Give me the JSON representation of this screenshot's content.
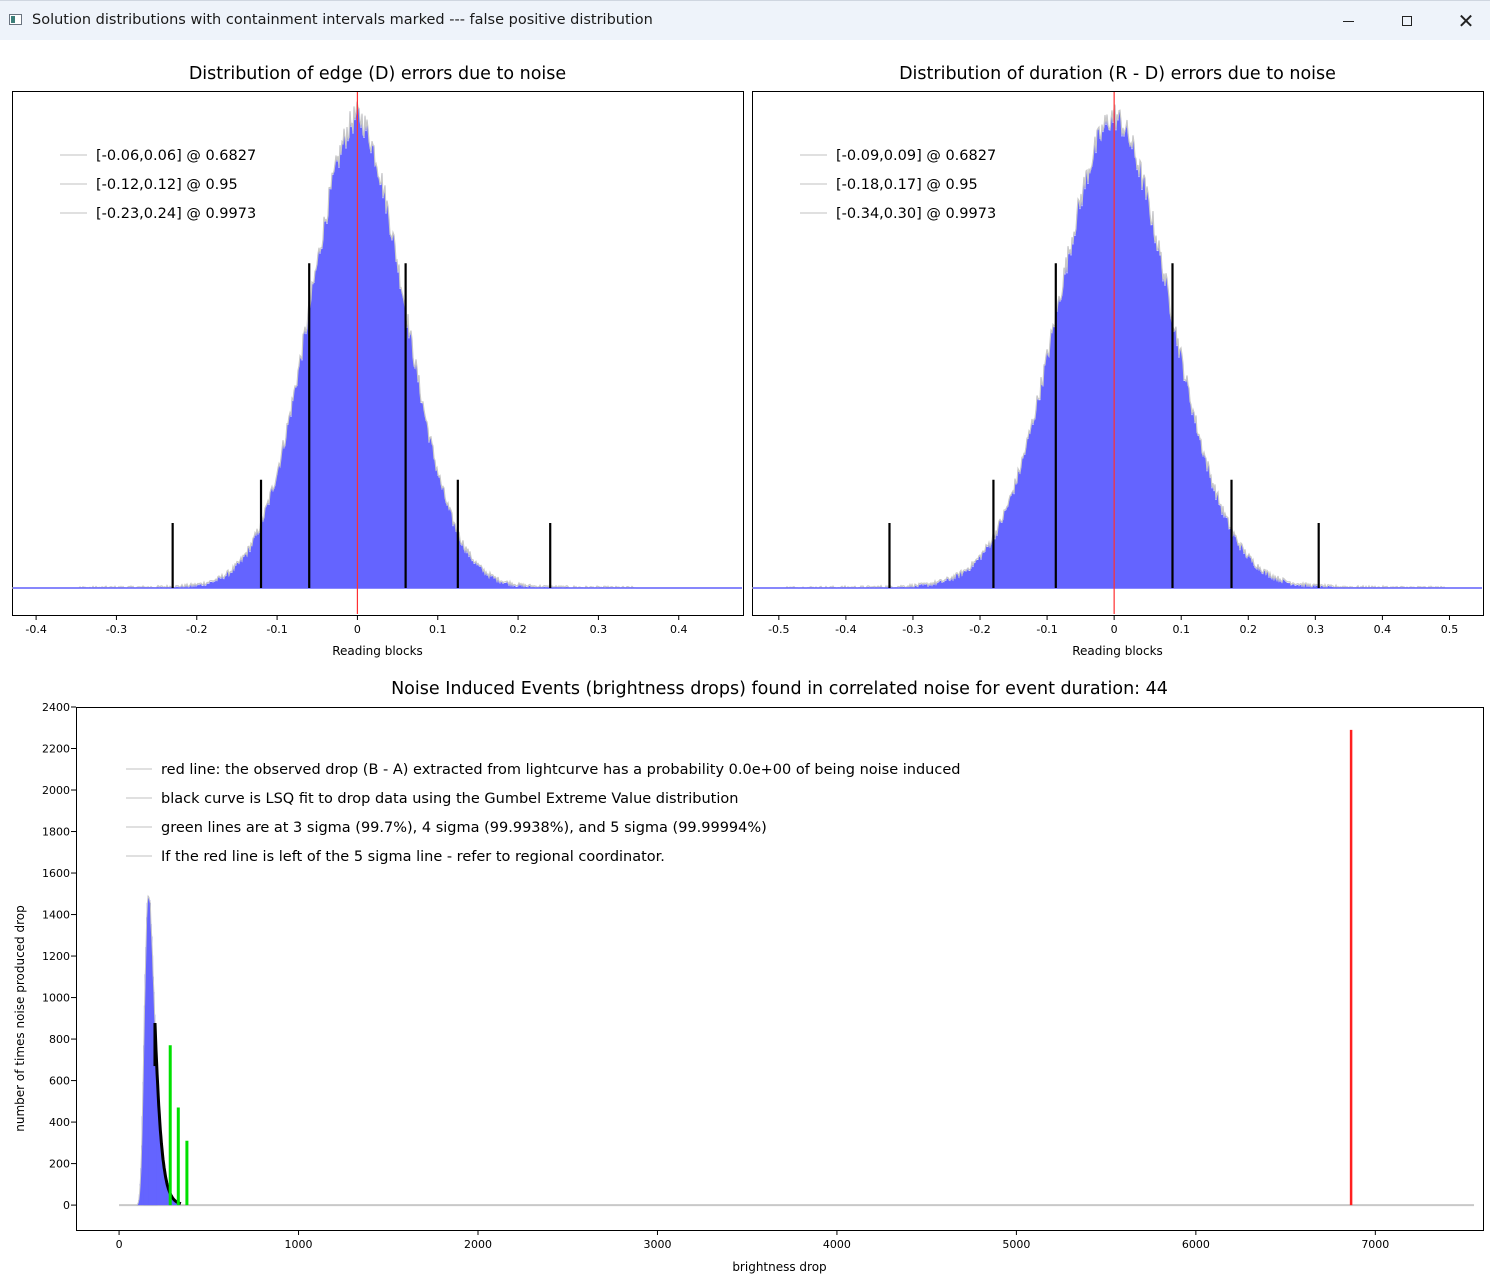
{
  "window": {
    "title": "Solution distributions with containment intervals marked --- false positive distribution",
    "buttons": {
      "minimize_icon": "minimize-icon",
      "maximize_icon": "maximize-icon",
      "close_icon": "close-icon"
    }
  },
  "chart_data": [
    {
      "id": "edge",
      "type": "bar",
      "title": "Distribution of edge (D) errors due to noise",
      "xlabel": "Reading blocks",
      "ylabel": "",
      "xlim": [
        -0.43,
        0.48
      ],
      "xticks": [
        -0.4,
        -0.3,
        -0.2,
        -0.1,
        0,
        0.1,
        0.2,
        0.3,
        0.4
      ],
      "xtick_labels": [
        "-0.4",
        "-0.3",
        "-0.2",
        "-0.1",
        "0",
        "0.1",
        "0.2",
        "0.3",
        "0.4"
      ],
      "yaxis_labels_shown": false,
      "histogram": {
        "color": "#6464ff",
        "outline_color": "#c8c8c8",
        "center": 0.0,
        "sigma": 0.06,
        "peak_relative": 1.0
      },
      "zero_line": {
        "x": 0,
        "color": "#ff3030"
      },
      "interval_lines": [
        {
          "x": -0.06,
          "height_relative": 0.75
        },
        {
          "x": 0.06,
          "height_relative": 0.75
        },
        {
          "x": -0.12,
          "height_relative": 0.25
        },
        {
          "x": 0.125,
          "height_relative": 0.25
        },
        {
          "x": -0.23,
          "height_relative": 0.15
        },
        {
          "x": 0.24,
          "height_relative": 0.15
        }
      ],
      "legend_position": "top-left",
      "legend": [
        "[-0.06,0.06] @ 0.6827",
        "[-0.12,0.12] @ 0.95",
        "[-0.23,0.24] @ 0.9973"
      ]
    },
    {
      "id": "duration",
      "type": "bar",
      "title": "Distribution of duration (R - D) errors due to noise",
      "xlabel": "Reading blocks",
      "ylabel": "",
      "xlim": [
        -0.54,
        0.55
      ],
      "xticks": [
        -0.5,
        -0.4,
        -0.3,
        -0.2,
        -0.1,
        0,
        0.1,
        0.2,
        0.3,
        0.4,
        0.5
      ],
      "xtick_labels": [
        "-0.5",
        "-0.4",
        "-0.3",
        "-0.2",
        "-0.1",
        "0",
        "0.1",
        "0.2",
        "0.3",
        "0.4",
        "0.5"
      ],
      "yaxis_labels_shown": false,
      "histogram": {
        "color": "#6464ff",
        "outline_color": "#c8c8c8",
        "center": 0.0,
        "sigma": 0.085,
        "peak_relative": 1.0
      },
      "zero_line": {
        "x": 0,
        "color": "#ff3030"
      },
      "interval_lines": [
        {
          "x": -0.087,
          "height_relative": 0.75
        },
        {
          "x": 0.087,
          "height_relative": 0.75
        },
        {
          "x": -0.18,
          "height_relative": 0.25
        },
        {
          "x": 0.175,
          "height_relative": 0.25
        },
        {
          "x": -0.335,
          "height_relative": 0.15
        },
        {
          "x": 0.305,
          "height_relative": 0.15
        }
      ],
      "legend_position": "top-left",
      "legend": [
        "[-0.09,0.09] @ 0.6827",
        "[-0.18,0.17] @ 0.95",
        "[-0.34,0.30] @ 0.9973"
      ]
    },
    {
      "id": "noise",
      "type": "bar",
      "title": "Noise Induced Events (brightness drops) found in correlated noise for event duration: 44",
      "xlabel": "brightness drop",
      "ylabel": "number of times noise produced drop",
      "xlim": [
        -240,
        7600
      ],
      "ylim": [
        -120,
        2400
      ],
      "xticks": [
        0,
        1000,
        2000,
        3000,
        4000,
        5000,
        6000,
        7000
      ],
      "xtick_labels": [
        "0",
        "1000",
        "2000",
        "3000",
        "4000",
        "5000",
        "6000",
        "7000"
      ],
      "yticks": [
        0,
        200,
        400,
        600,
        800,
        1000,
        1200,
        1400,
        1600,
        1800,
        2000,
        2200,
        2400
      ],
      "ytick_labels": [
        "0",
        "200",
        "400",
        "600",
        "800",
        "1000",
        "1200",
        "1400",
        "1600",
        "1800",
        "2000",
        "2200",
        "2400"
      ],
      "histogram": {
        "color": "#6464ff",
        "outline_color": "#c8c8c8",
        "x_start": 90,
        "peak_x": 165,
        "peak_y": 1500,
        "x_end": 340
      },
      "baseline": {
        "x_start": 0,
        "x_end": 7550,
        "color": "#c8c8c8"
      },
      "gumbel_fit": {
        "color": "#000000",
        "x_start": 200,
        "x_end": 345,
        "y_start": 670
      },
      "sigma_lines": [
        {
          "label": "3 sigma",
          "x": 285,
          "y": 770,
          "color": "#00e000"
        },
        {
          "label": "4 sigma",
          "x": 330,
          "y": 470,
          "color": "#00e000"
        },
        {
          "label": "5 sigma",
          "x": 378,
          "y": 310,
          "color": "#00e000"
        }
      ],
      "observed_line": {
        "x": 6865,
        "y": 2290,
        "color": "#ff2020"
      },
      "legend_position": "top-left",
      "legend": [
        "red line: the observed drop (B - A) extracted from lightcurve has a probability 0.0e+00 of being noise induced",
        "black curve is LSQ fit to drop data using the Gumbel Extreme Value distribution",
        "green lines are at 3 sigma (99.7%), 4 sigma (99.9938%), and 5 sigma (99.99994%)",
        "If the red line is left of the 5 sigma line - refer to regional coordinator."
      ]
    }
  ]
}
